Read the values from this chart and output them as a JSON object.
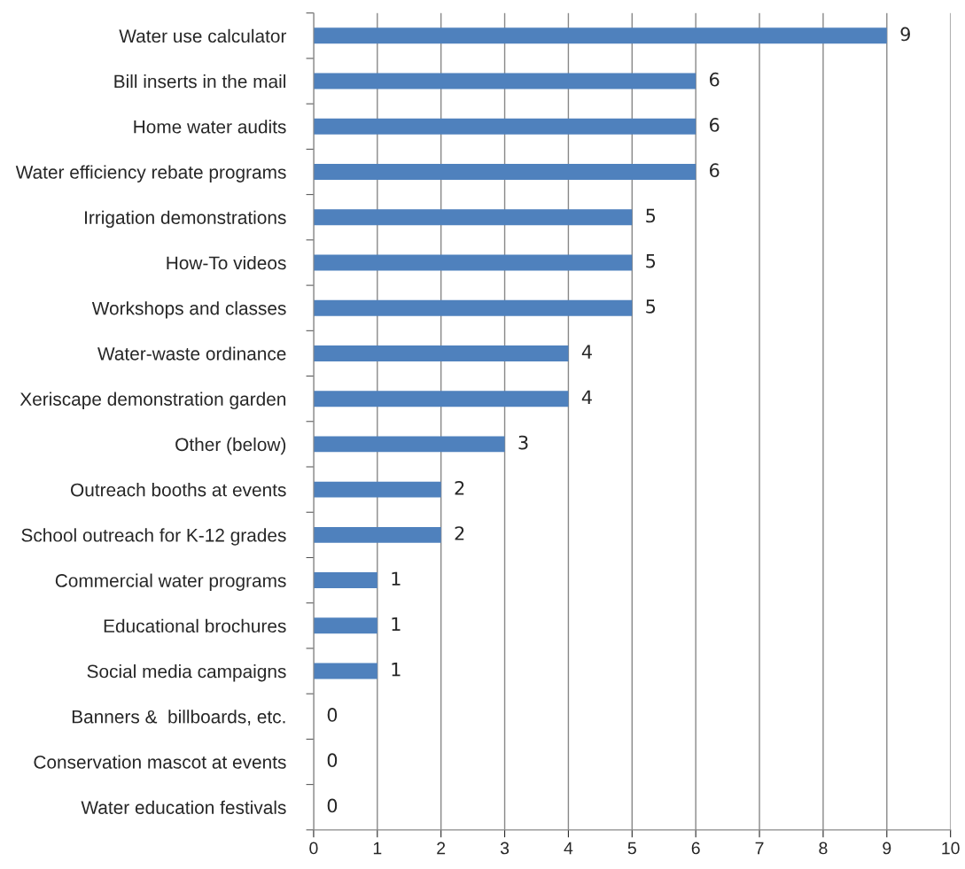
{
  "chart_data": {
    "type": "bar",
    "orientation": "horizontal",
    "categories": [
      "Water use calculator",
      "Bill inserts in the mail",
      "Home water audits",
      "Water efficiency rebate programs",
      "Irrigation demonstrations",
      "How-To videos",
      "Workshops and classes",
      "Water-waste ordinance",
      "Xeriscape demonstration garden",
      "Other (below)",
      "Outreach booths at events",
      "School outreach for K-12 grades",
      "Commercial water programs",
      "Educational brochures",
      "Social media campaigns",
      "Banners &  billboards, etc.",
      "Conservation mascot at events",
      "Water education festivals"
    ],
    "values": [
      9,
      6,
      6,
      6,
      5,
      5,
      5,
      4,
      4,
      3,
      2,
      2,
      1,
      1,
      1,
      0,
      0,
      0
    ],
    "color": "#4f81bd",
    "xlim": [
      0,
      10
    ],
    "xticks": [
      0,
      1,
      2,
      3,
      4,
      5,
      6,
      7,
      8,
      9,
      10
    ],
    "grid": "x",
    "data_labels": true,
    "legend": false
  }
}
